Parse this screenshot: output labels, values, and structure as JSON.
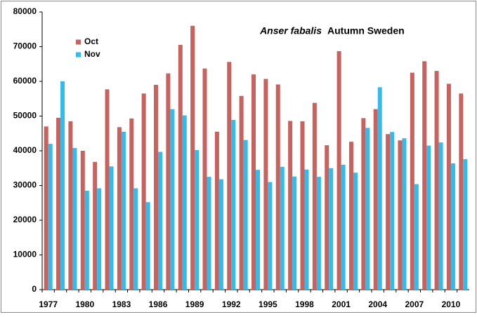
{
  "chart_data": {
    "type": "bar",
    "title": "Anser fabalis",
    "subtitle": "Autumn Sweden",
    "categories": [
      "1977",
      null,
      null,
      "1980",
      null,
      null,
      "1983",
      null,
      null,
      "1986",
      null,
      null,
      "1989",
      null,
      null,
      "1992",
      null,
      null,
      "1995",
      null,
      null,
      "1998",
      null,
      null,
      "2001",
      null,
      null,
      "2004",
      null,
      null,
      "2007",
      null,
      null,
      "2010",
      null
    ],
    "series": [
      {
        "name": "Oct",
        "color": "#c8625e",
        "values": [
          47000,
          49500,
          48500,
          40000,
          36800,
          57700,
          46800,
          49300,
          56500,
          59000,
          62300,
          70500,
          76000,
          63700,
          45500,
          65600,
          55800,
          62000,
          60700,
          59100,
          48600,
          48500,
          53800,
          41600,
          68700,
          42600,
          49400,
          52000,
          44800,
          43000,
          62500,
          65800,
          63000,
          59300,
          56500
        ]
      },
      {
        "name": "Nov",
        "color": "#33bbea",
        "values": [
          42000,
          60000,
          40800,
          28500,
          29200,
          35500,
          45500,
          29200,
          25200,
          39700,
          52000,
          50200,
          40200,
          32500,
          31800,
          48900,
          43100,
          34500,
          31000,
          35400,
          32600,
          34600,
          32500,
          35000,
          36000,
          33700,
          46600,
          58300,
          45400,
          43600,
          30400,
          41500,
          42400,
          36400,
          37600
        ]
      }
    ],
    "ylim": [
      0,
      80000
    ],
    "yticks": [
      0,
      10000,
      20000,
      30000,
      40000,
      50000,
      60000,
      70000,
      80000
    ],
    "grid": false,
    "legend": "top-left"
  }
}
